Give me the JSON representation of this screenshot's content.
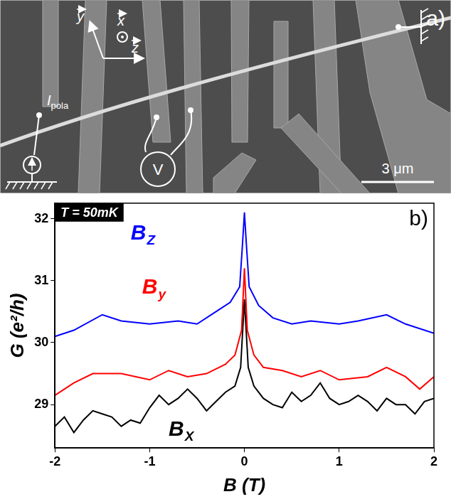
{
  "panel_a": {
    "label": "a)",
    "scale_bar": "3 μm",
    "current_source": {
      "symbol": "I",
      "subscript": "pola"
    },
    "voltmeter": "V",
    "axes": [
      "y",
      "x",
      "z"
    ]
  },
  "chart_data": {
    "type": "line",
    "x_label": "B (T)",
    "y_label": "G (e²/h)",
    "annotations": {
      "temperature": "T = 50mK",
      "panel": "b)"
    },
    "xlim": [
      -2,
      2
    ],
    "xticks": [
      -2,
      -1,
      0,
      1,
      2
    ],
    "ylim": [
      28.3,
      32.25
    ],
    "yticks": [
      29,
      30,
      31,
      32
    ],
    "grid": false,
    "legend": "none",
    "series": [
      {
        "name": "BZ",
        "color": "#0000ff",
        "x": [
          -2,
          -1.8,
          -1.5,
          -1.3,
          -1,
          -0.7,
          -0.5,
          -0.3,
          -0.15,
          -0.05,
          -0.02,
          0,
          0.02,
          0.05,
          0.15,
          0.3,
          0.5,
          0.7,
          1,
          1.2,
          1.5,
          1.7,
          2
        ],
        "values": [
          30.1,
          30.2,
          30.45,
          30.35,
          30.3,
          30.35,
          30.3,
          30.5,
          30.65,
          30.9,
          31.6,
          32.1,
          31.6,
          30.9,
          30.6,
          30.4,
          30.3,
          30.35,
          30.3,
          30.35,
          30.45,
          30.3,
          30.15
        ]
      },
      {
        "name": "By",
        "color": "#ff0000",
        "x": [
          -2,
          -1.8,
          -1.6,
          -1.3,
          -1,
          -0.8,
          -0.6,
          -0.4,
          -0.2,
          -0.1,
          -0.03,
          0,
          0.03,
          0.1,
          0.2,
          0.4,
          0.6,
          0.8,
          1,
          1.3,
          1.5,
          1.7,
          1.85,
          2
        ],
        "values": [
          29.15,
          29.35,
          29.5,
          29.5,
          29.4,
          29.55,
          29.45,
          29.5,
          29.65,
          29.8,
          30.2,
          31.2,
          30.2,
          29.8,
          29.6,
          29.55,
          29.45,
          29.55,
          29.4,
          29.45,
          29.6,
          29.45,
          29.25,
          29.45
        ]
      },
      {
        "name": "BX",
        "color": "#000000",
        "x": [
          -2,
          -1.9,
          -1.8,
          -1.7,
          -1.6,
          -1.5,
          -1.4,
          -1.3,
          -1.2,
          -1.1,
          -1,
          -0.9,
          -0.8,
          -0.7,
          -0.6,
          -0.5,
          -0.4,
          -0.3,
          -0.2,
          -0.1,
          -0.04,
          0,
          0.04,
          0.1,
          0.2,
          0.3,
          0.4,
          0.5,
          0.6,
          0.7,
          0.8,
          0.9,
          1,
          1.1,
          1.2,
          1.3,
          1.4,
          1.5,
          1.6,
          1.7,
          1.8,
          1.9,
          2
        ],
        "values": [
          28.65,
          28.8,
          28.55,
          28.75,
          28.9,
          28.85,
          28.8,
          28.65,
          28.75,
          28.7,
          28.95,
          29.15,
          29.0,
          29.1,
          29.25,
          29.1,
          28.9,
          29.05,
          29.2,
          29.3,
          29.6,
          30.7,
          29.6,
          29.3,
          29.1,
          29.0,
          28.95,
          29.2,
          29.05,
          29.15,
          29.35,
          29.1,
          29.0,
          29.05,
          29.15,
          29.05,
          28.9,
          29.1,
          29.0,
          29.0,
          28.85,
          29.05,
          29.1
        ]
      }
    ]
  }
}
